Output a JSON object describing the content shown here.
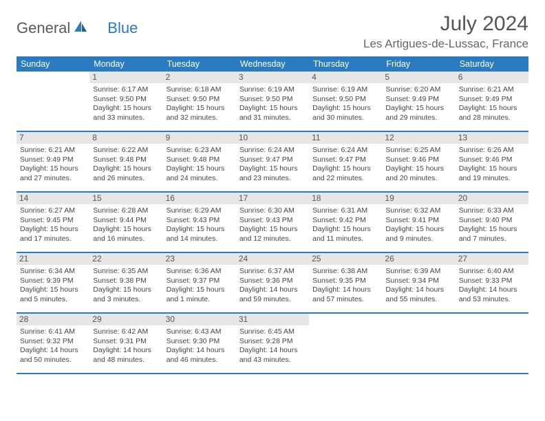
{
  "logo": {
    "text1": "General",
    "text2": "Blue"
  },
  "title": "July 2024",
  "location": "Les Artigues-de-Lussac, France",
  "colors": {
    "header_bg": "#2a7bbf",
    "daynum_bg": "#e6e6e6",
    "border": "#2a7bbf"
  },
  "weekdays": [
    "Sunday",
    "Monday",
    "Tuesday",
    "Wednesday",
    "Thursday",
    "Friday",
    "Saturday"
  ],
  "weeks": [
    [
      null,
      {
        "n": "1",
        "sr": "6:17 AM",
        "ss": "9:50 PM",
        "dl": "15 hours and 33 minutes."
      },
      {
        "n": "2",
        "sr": "6:18 AM",
        "ss": "9:50 PM",
        "dl": "15 hours and 32 minutes."
      },
      {
        "n": "3",
        "sr": "6:19 AM",
        "ss": "9:50 PM",
        "dl": "15 hours and 31 minutes."
      },
      {
        "n": "4",
        "sr": "6:19 AM",
        "ss": "9:50 PM",
        "dl": "15 hours and 30 minutes."
      },
      {
        "n": "5",
        "sr": "6:20 AM",
        "ss": "9:49 PM",
        "dl": "15 hours and 29 minutes."
      },
      {
        "n": "6",
        "sr": "6:21 AM",
        "ss": "9:49 PM",
        "dl": "15 hours and 28 minutes."
      }
    ],
    [
      {
        "n": "7",
        "sr": "6:21 AM",
        "ss": "9:49 PM",
        "dl": "15 hours and 27 minutes."
      },
      {
        "n": "8",
        "sr": "6:22 AM",
        "ss": "9:48 PM",
        "dl": "15 hours and 26 minutes."
      },
      {
        "n": "9",
        "sr": "6:23 AM",
        "ss": "9:48 PM",
        "dl": "15 hours and 24 minutes."
      },
      {
        "n": "10",
        "sr": "6:24 AM",
        "ss": "9:47 PM",
        "dl": "15 hours and 23 minutes."
      },
      {
        "n": "11",
        "sr": "6:24 AM",
        "ss": "9:47 PM",
        "dl": "15 hours and 22 minutes."
      },
      {
        "n": "12",
        "sr": "6:25 AM",
        "ss": "9:46 PM",
        "dl": "15 hours and 20 minutes."
      },
      {
        "n": "13",
        "sr": "6:26 AM",
        "ss": "9:46 PM",
        "dl": "15 hours and 19 minutes."
      }
    ],
    [
      {
        "n": "14",
        "sr": "6:27 AM",
        "ss": "9:45 PM",
        "dl": "15 hours and 17 minutes."
      },
      {
        "n": "15",
        "sr": "6:28 AM",
        "ss": "9:44 PM",
        "dl": "15 hours and 16 minutes."
      },
      {
        "n": "16",
        "sr": "6:29 AM",
        "ss": "9:43 PM",
        "dl": "15 hours and 14 minutes."
      },
      {
        "n": "17",
        "sr": "6:30 AM",
        "ss": "9:43 PM",
        "dl": "15 hours and 12 minutes."
      },
      {
        "n": "18",
        "sr": "6:31 AM",
        "ss": "9:42 PM",
        "dl": "15 hours and 11 minutes."
      },
      {
        "n": "19",
        "sr": "6:32 AM",
        "ss": "9:41 PM",
        "dl": "15 hours and 9 minutes."
      },
      {
        "n": "20",
        "sr": "6:33 AM",
        "ss": "9:40 PM",
        "dl": "15 hours and 7 minutes."
      }
    ],
    [
      {
        "n": "21",
        "sr": "6:34 AM",
        "ss": "9:39 PM",
        "dl": "15 hours and 5 minutes."
      },
      {
        "n": "22",
        "sr": "6:35 AM",
        "ss": "9:38 PM",
        "dl": "15 hours and 3 minutes."
      },
      {
        "n": "23",
        "sr": "6:36 AM",
        "ss": "9:37 PM",
        "dl": "15 hours and 1 minute."
      },
      {
        "n": "24",
        "sr": "6:37 AM",
        "ss": "9:36 PM",
        "dl": "14 hours and 59 minutes."
      },
      {
        "n": "25",
        "sr": "6:38 AM",
        "ss": "9:35 PM",
        "dl": "14 hours and 57 minutes."
      },
      {
        "n": "26",
        "sr": "6:39 AM",
        "ss": "9:34 PM",
        "dl": "14 hours and 55 minutes."
      },
      {
        "n": "27",
        "sr": "6:40 AM",
        "ss": "9:33 PM",
        "dl": "14 hours and 53 minutes."
      }
    ],
    [
      {
        "n": "28",
        "sr": "6:41 AM",
        "ss": "9:32 PM",
        "dl": "14 hours and 50 minutes."
      },
      {
        "n": "29",
        "sr": "6:42 AM",
        "ss": "9:31 PM",
        "dl": "14 hours and 48 minutes."
      },
      {
        "n": "30",
        "sr": "6:43 AM",
        "ss": "9:30 PM",
        "dl": "14 hours and 46 minutes."
      },
      {
        "n": "31",
        "sr": "6:45 AM",
        "ss": "9:28 PM",
        "dl": "14 hours and 43 minutes."
      },
      null,
      null,
      null
    ]
  ],
  "labels": {
    "sunrise": "Sunrise: ",
    "sunset": "Sunset: ",
    "daylight": "Daylight: "
  }
}
